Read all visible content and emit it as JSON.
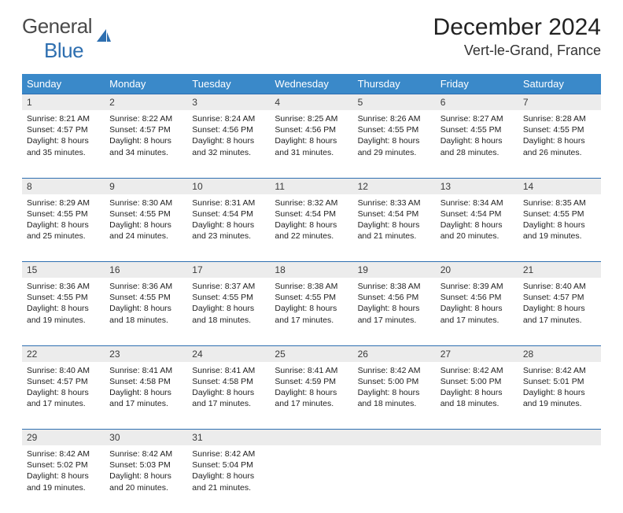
{
  "logo": {
    "part1": "General",
    "part2": "Blue"
  },
  "title": "December 2024",
  "location": "Vert-le-Grand, France",
  "colors": {
    "header_bg": "#3a89c9",
    "border": "#2e6fb0",
    "daynum_bg": "#ececec",
    "logo_gray": "#4a4a4a",
    "logo_blue": "#2e6fb0"
  },
  "weekdays": [
    "Sunday",
    "Monday",
    "Tuesday",
    "Wednesday",
    "Thursday",
    "Friday",
    "Saturday"
  ],
  "weeks": [
    [
      {
        "n": "1",
        "sr": "8:21 AM",
        "ss": "4:57 PM",
        "dl": "8 hours and 35 minutes."
      },
      {
        "n": "2",
        "sr": "8:22 AM",
        "ss": "4:57 PM",
        "dl": "8 hours and 34 minutes."
      },
      {
        "n": "3",
        "sr": "8:24 AM",
        "ss": "4:56 PM",
        "dl": "8 hours and 32 minutes."
      },
      {
        "n": "4",
        "sr": "8:25 AM",
        "ss": "4:56 PM",
        "dl": "8 hours and 31 minutes."
      },
      {
        "n": "5",
        "sr": "8:26 AM",
        "ss": "4:55 PM",
        "dl": "8 hours and 29 minutes."
      },
      {
        "n": "6",
        "sr": "8:27 AM",
        "ss": "4:55 PM",
        "dl": "8 hours and 28 minutes."
      },
      {
        "n": "7",
        "sr": "8:28 AM",
        "ss": "4:55 PM",
        "dl": "8 hours and 26 minutes."
      }
    ],
    [
      {
        "n": "8",
        "sr": "8:29 AM",
        "ss": "4:55 PM",
        "dl": "8 hours and 25 minutes."
      },
      {
        "n": "9",
        "sr": "8:30 AM",
        "ss": "4:55 PM",
        "dl": "8 hours and 24 minutes."
      },
      {
        "n": "10",
        "sr": "8:31 AM",
        "ss": "4:54 PM",
        "dl": "8 hours and 23 minutes."
      },
      {
        "n": "11",
        "sr": "8:32 AM",
        "ss": "4:54 PM",
        "dl": "8 hours and 22 minutes."
      },
      {
        "n": "12",
        "sr": "8:33 AM",
        "ss": "4:54 PM",
        "dl": "8 hours and 21 minutes."
      },
      {
        "n": "13",
        "sr": "8:34 AM",
        "ss": "4:54 PM",
        "dl": "8 hours and 20 minutes."
      },
      {
        "n": "14",
        "sr": "8:35 AM",
        "ss": "4:55 PM",
        "dl": "8 hours and 19 minutes."
      }
    ],
    [
      {
        "n": "15",
        "sr": "8:36 AM",
        "ss": "4:55 PM",
        "dl": "8 hours and 19 minutes."
      },
      {
        "n": "16",
        "sr": "8:36 AM",
        "ss": "4:55 PM",
        "dl": "8 hours and 18 minutes."
      },
      {
        "n": "17",
        "sr": "8:37 AM",
        "ss": "4:55 PM",
        "dl": "8 hours and 18 minutes."
      },
      {
        "n": "18",
        "sr": "8:38 AM",
        "ss": "4:55 PM",
        "dl": "8 hours and 17 minutes."
      },
      {
        "n": "19",
        "sr": "8:38 AM",
        "ss": "4:56 PM",
        "dl": "8 hours and 17 minutes."
      },
      {
        "n": "20",
        "sr": "8:39 AM",
        "ss": "4:56 PM",
        "dl": "8 hours and 17 minutes."
      },
      {
        "n": "21",
        "sr": "8:40 AM",
        "ss": "4:57 PM",
        "dl": "8 hours and 17 minutes."
      }
    ],
    [
      {
        "n": "22",
        "sr": "8:40 AM",
        "ss": "4:57 PM",
        "dl": "8 hours and 17 minutes."
      },
      {
        "n": "23",
        "sr": "8:41 AM",
        "ss": "4:58 PM",
        "dl": "8 hours and 17 minutes."
      },
      {
        "n": "24",
        "sr": "8:41 AM",
        "ss": "4:58 PM",
        "dl": "8 hours and 17 minutes."
      },
      {
        "n": "25",
        "sr": "8:41 AM",
        "ss": "4:59 PM",
        "dl": "8 hours and 17 minutes."
      },
      {
        "n": "26",
        "sr": "8:42 AM",
        "ss": "5:00 PM",
        "dl": "8 hours and 18 minutes."
      },
      {
        "n": "27",
        "sr": "8:42 AM",
        "ss": "5:00 PM",
        "dl": "8 hours and 18 minutes."
      },
      {
        "n": "28",
        "sr": "8:42 AM",
        "ss": "5:01 PM",
        "dl": "8 hours and 19 minutes."
      }
    ],
    [
      {
        "n": "29",
        "sr": "8:42 AM",
        "ss": "5:02 PM",
        "dl": "8 hours and 19 minutes."
      },
      {
        "n": "30",
        "sr": "8:42 AM",
        "ss": "5:03 PM",
        "dl": "8 hours and 20 minutes."
      },
      {
        "n": "31",
        "sr": "8:42 AM",
        "ss": "5:04 PM",
        "dl": "8 hours and 21 minutes."
      },
      null,
      null,
      null,
      null
    ]
  ],
  "labels": {
    "sunrise": "Sunrise: ",
    "sunset": "Sunset: ",
    "daylight": "Daylight: "
  }
}
